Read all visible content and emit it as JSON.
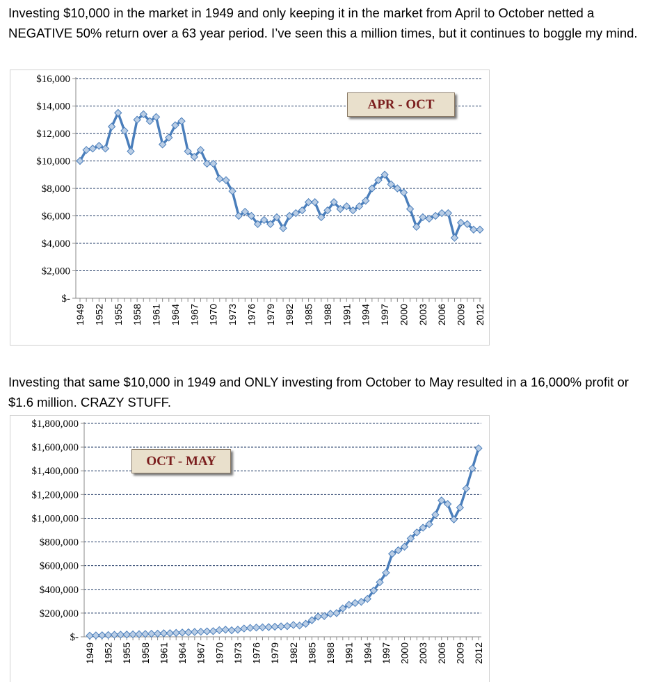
{
  "text": {
    "paragraph1": "Investing $10,000 in the market in 1949 and only keeping it in the market from April to October netted a NEGATIVE 50% return over a 63 year period.  I’ve seen this a million times, but it continues to boggle my mind.",
    "paragraph2": "Investing that same $10,000 in 1949 and ONLY investing from October to May resulted in a 16,000% profit or $1.6 million.  CRAZY STUFF."
  },
  "colors": {
    "line": "#4a7ebb",
    "marker_fill": "#b9cde5",
    "grid": "#1f3864",
    "label_bg": "#e9e0cc",
    "label_text": "#7b1e1e"
  },
  "chart_data": [
    {
      "type": "line",
      "title": "APR - OCT",
      "xlabel": "",
      "ylabel": "",
      "ylim": [
        0,
        16000
      ],
      "yticks": [
        0,
        2000,
        4000,
        6000,
        8000,
        10000,
        12000,
        14000,
        16000
      ],
      "ytick_labels": [
        "$-",
        "$2,000",
        "$4,000",
        "$6,000",
        "$8,000",
        "$10,000",
        "$12,000",
        "$14,000",
        "$16,000"
      ],
      "xtick_labels": [
        "1949",
        "1952",
        "1955",
        "1958",
        "1961",
        "1964",
        "1967",
        "1970",
        "1973",
        "1976",
        "1979",
        "1982",
        "1985",
        "1988",
        "1991",
        "1994",
        "1997",
        "2000",
        "2003",
        "2006",
        "2009",
        "2012"
      ],
      "grid": true,
      "x": [
        1949,
        1950,
        1951,
        1952,
        1953,
        1954,
        1955,
        1956,
        1957,
        1958,
        1959,
        1960,
        1961,
        1962,
        1963,
        1964,
        1965,
        1966,
        1967,
        1968,
        1969,
        1970,
        1971,
        1972,
        1973,
        1974,
        1975,
        1976,
        1977,
        1978,
        1979,
        1980,
        1981,
        1982,
        1983,
        1984,
        1985,
        1986,
        1987,
        1988,
        1989,
        1990,
        1991,
        1992,
        1993,
        1994,
        1995,
        1996,
        1997,
        1998,
        1999,
        2000,
        2001,
        2002,
        2003,
        2004,
        2005,
        2006,
        2007,
        2008,
        2009,
        2010,
        2011,
        2012
      ],
      "values": [
        10000,
        10800,
        10900,
        11100,
        10900,
        12500,
        13500,
        12200,
        10700,
        13000,
        13400,
        12900,
        13200,
        11200,
        11700,
        12600,
        12900,
        10700,
        10300,
        10800,
        9800,
        9800,
        8700,
        8600,
        7800,
        6000,
        6300,
        6000,
        5400,
        5700,
        5400,
        5900,
        5100,
        6000,
        6200,
        6400,
        7000,
        7000,
        5900,
        6400,
        7000,
        6500,
        6700,
        6400,
        6700,
        7100,
        8000,
        8600,
        9000,
        8300,
        8000,
        7700,
        6500,
        5200,
        5900,
        5800,
        6000,
        6200,
        6200,
        4400,
        5500,
        5400,
        5000,
        5000
      ]
    },
    {
      "type": "line",
      "title": "OCT - MAY",
      "xlabel": "",
      "ylabel": "",
      "ylim": [
        0,
        1800000
      ],
      "yticks": [
        0,
        200000,
        400000,
        600000,
        800000,
        1000000,
        1200000,
        1400000,
        1600000,
        1800000
      ],
      "ytick_labels": [
        "$-",
        "$200,000",
        "$400,000",
        "$600,000",
        "$800,000",
        "$1,000,000",
        "$1,200,000",
        "$1,400,000",
        "$1,600,000",
        "$1,800,000"
      ],
      "xtick_labels": [
        "1949",
        "1952",
        "1955",
        "1958",
        "1961",
        "1964",
        "1967",
        "1970",
        "1973",
        "1976",
        "1979",
        "1982",
        "1985",
        "1988",
        "1991",
        "1994",
        "1997",
        "2000",
        "2003",
        "2006",
        "2009",
        "2012"
      ],
      "grid": true,
      "x": [
        1949,
        1950,
        1951,
        1952,
        1953,
        1954,
        1955,
        1956,
        1957,
        1958,
        1959,
        1960,
        1961,
        1962,
        1963,
        1964,
        1965,
        1966,
        1967,
        1968,
        1969,
        1970,
        1971,
        1972,
        1973,
        1974,
        1975,
        1976,
        1977,
        1978,
        1979,
        1980,
        1981,
        1982,
        1983,
        1984,
        1985,
        1986,
        1987,
        1988,
        1989,
        1990,
        1991,
        1992,
        1993,
        1994,
        1995,
        1996,
        1997,
        1998,
        1999,
        2000,
        2001,
        2002,
        2003,
        2004,
        2005,
        2006,
        2007,
        2008,
        2009,
        2010,
        2011,
        2012
      ],
      "values": [
        10000,
        12000,
        13000,
        15000,
        17000,
        18000,
        19000,
        21000,
        22000,
        24000,
        26000,
        27000,
        30000,
        31000,
        33000,
        36000,
        38000,
        41000,
        43000,
        46000,
        48000,
        56000,
        60000,
        55000,
        60000,
        70000,
        75000,
        78000,
        80000,
        82000,
        85000,
        88000,
        90000,
        100000,
        95000,
        110000,
        140000,
        170000,
        175000,
        195000,
        200000,
        240000,
        270000,
        285000,
        295000,
        320000,
        390000,
        460000,
        540000,
        700000,
        730000,
        760000,
        830000,
        880000,
        920000,
        950000,
        1030000,
        1150000,
        1120000,
        990000,
        1090000,
        1250000,
        1420000,
        1590000
      ]
    }
  ]
}
